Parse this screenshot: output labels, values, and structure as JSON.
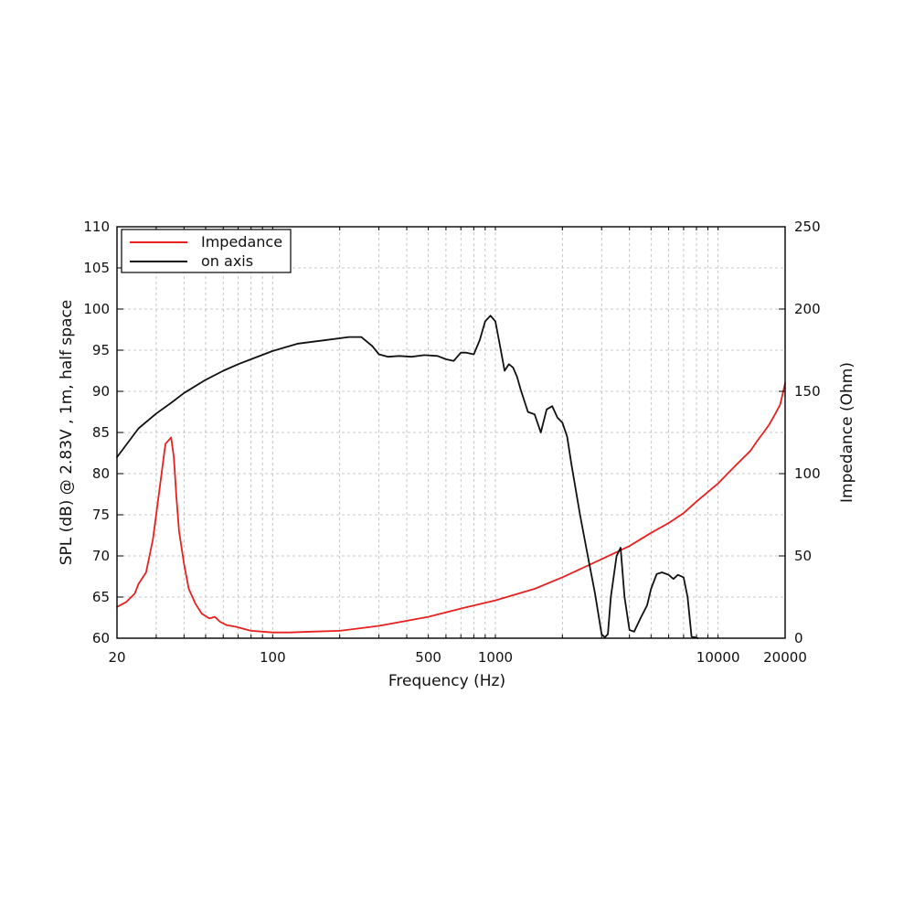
{
  "chart_data": {
    "type": "line",
    "title": "",
    "xlabel": "Frequency (Hz)",
    "ylabel": "SPL (dB) @ 2.83V , 1m, half space",
    "y2label": "Impedance (Ohm)",
    "x_scale": "log",
    "xlim": [
      20,
      20000
    ],
    "ylim": [
      60,
      110
    ],
    "y2lim": [
      0,
      250
    ],
    "x_ticks": [
      20,
      100,
      500,
      1000,
      10000,
      20000
    ],
    "x_tick_labels": [
      "20",
      "100",
      "500",
      "1000",
      "10000",
      "20000"
    ],
    "y_ticks": [
      60,
      65,
      70,
      75,
      80,
      85,
      90,
      95,
      100,
      105,
      110
    ],
    "y_tick_labels": [
      "60",
      "65",
      "70",
      "75",
      "80",
      "85",
      "90",
      "95",
      "100",
      "105",
      "110"
    ],
    "y2_ticks": [
      0,
      50,
      100,
      150,
      200,
      250
    ],
    "y2_tick_labels": [
      "0",
      "50",
      "100",
      "150",
      "200",
      "250"
    ],
    "grid": true,
    "legend_position": "top-left",
    "series": [
      {
        "name": "Impedance",
        "color": "#e8201e",
        "axis": "right",
        "x": [
          20,
          22,
          24,
          25,
          27,
          29,
          31,
          33,
          35,
          36,
          37,
          38,
          40,
          42,
          45,
          48,
          52,
          55,
          58,
          62,
          68,
          80,
          100,
          120,
          150,
          200,
          300,
          500,
          700,
          1000,
          1500,
          2000,
          3000,
          4000,
          5000,
          6000,
          7000,
          8000,
          10000,
          12000,
          14000,
          15000,
          16000,
          17000,
          18000,
          19000,
          20000
        ],
        "y": [
          19,
          22,
          27,
          33,
          40,
          60,
          90,
          118,
          122,
          110,
          85,
          65,
          45,
          30,
          21,
          15,
          12,
          13,
          10,
          8,
          7,
          4.5,
          3.5,
          3.5,
          4,
          4.5,
          7.5,
          13,
          18,
          23,
          30,
          37,
          48,
          56,
          64,
          70,
          76,
          83,
          94,
          105,
          114,
          120,
          125,
          130,
          136,
          142,
          155
        ]
      },
      {
        "name": "on axis",
        "color": "#111111",
        "axis": "left",
        "x": [
          20,
          22,
          25,
          30,
          35,
          40,
          50,
          60,
          70,
          80,
          100,
          130,
          170,
          220,
          250,
          280,
          300,
          330,
          370,
          420,
          480,
          550,
          600,
          650,
          700,
          740,
          800,
          850,
          900,
          950,
          1000,
          1050,
          1100,
          1150,
          1200,
          1250,
          1300,
          1400,
          1500,
          1600,
          1700,
          1800,
          1900,
          2000,
          2100,
          2200,
          2400,
          2600,
          2800,
          3000,
          3100,
          3200,
          3300,
          3500,
          3650,
          3800,
          4000,
          4200,
          4500,
          4800,
          5000,
          5300,
          5600,
          6000,
          6300,
          6600,
          7000,
          7300,
          7600,
          7900,
          8100
        ],
        "y": [
          82,
          83.5,
          85.5,
          87.3,
          88.6,
          89.8,
          91.4,
          92.5,
          93.3,
          93.9,
          94.9,
          95.8,
          96.2,
          96.6,
          96.6,
          95.5,
          94.5,
          94.2,
          94.3,
          94.2,
          94.4,
          94.3,
          93.9,
          93.7,
          94.7,
          94.7,
          94.5,
          96.2,
          98.5,
          99.2,
          98.5,
          95.5,
          92.5,
          93.3,
          92.9,
          91.8,
          90.2,
          87.5,
          87.2,
          85,
          87.8,
          88.2,
          86.8,
          86.2,
          84.5,
          81,
          75,
          70,
          65.5,
          60.5,
          60.1,
          60.5,
          65,
          70,
          71,
          65,
          61,
          60.8,
          62.5,
          64,
          66,
          67.8,
          68,
          67.7,
          67.2,
          67.7,
          67.4,
          65,
          60.2,
          60.1,
          60
        ]
      }
    ]
  }
}
